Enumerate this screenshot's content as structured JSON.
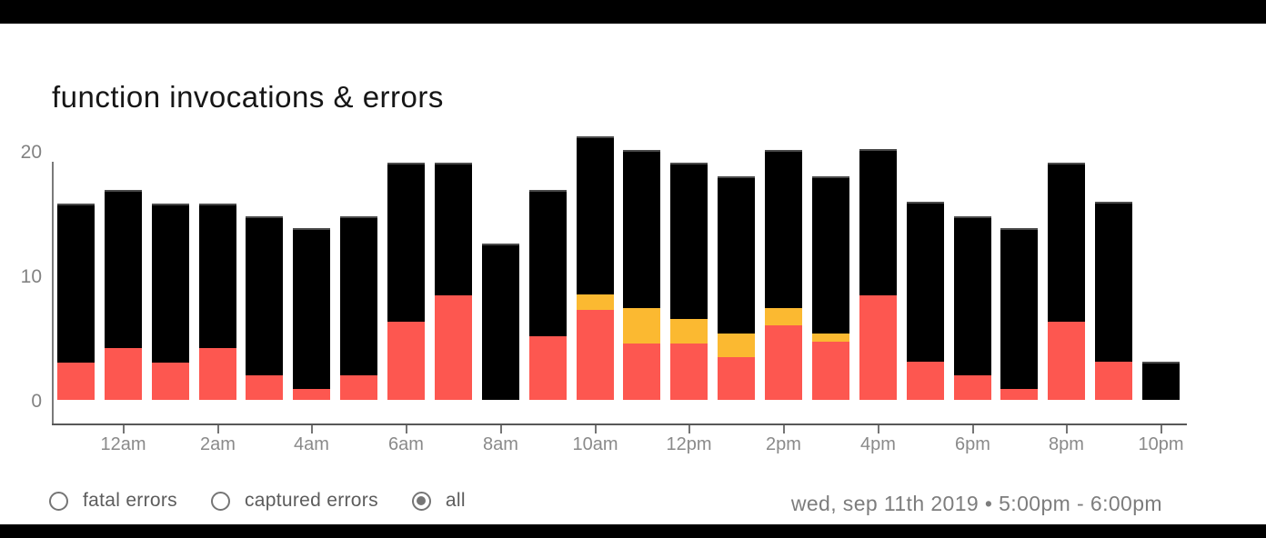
{
  "header": {
    "title": "function invocations & errors"
  },
  "colors": {
    "invocations": "#000000",
    "fatal_errors": "#fd5750",
    "captured_errors": "#fbb931",
    "axis": "#757575",
    "baseline": "#585858",
    "tick_label": "#8a8a8a",
    "title_text": "#161616",
    "footer_text": "#5c5c5c",
    "date_text": "#7d7d7d",
    "panel_bg": "#ffffff",
    "frame_bg": "#000000"
  },
  "chart_data": {
    "type": "bar",
    "stacked": true,
    "title": "function invocations & errors",
    "xlabel": "",
    "ylabel": "",
    "ylim": [
      0,
      21.5
    ],
    "y_ticks": [
      0,
      10,
      20
    ],
    "grid": false,
    "legend_position": "none",
    "x_tick_labels": [
      "12am",
      "2am",
      "4am",
      "6am",
      "8am",
      "10am",
      "12pm",
      "2pm",
      "4pm",
      "6pm",
      "8pm",
      "10pm"
    ],
    "series_names": [
      "fatal errors",
      "captured errors",
      "invocations"
    ],
    "bars": [
      {
        "hour": "11pm",
        "total": 15.8,
        "fatal": 3.0,
        "captured": 0,
        "labeled": false
      },
      {
        "hour": "12am",
        "total": 16.9,
        "fatal": 4.2,
        "captured": 0,
        "labeled": true
      },
      {
        "hour": "1am",
        "total": 15.8,
        "fatal": 3.0,
        "captured": 0,
        "labeled": false
      },
      {
        "hour": "2am",
        "total": 15.8,
        "fatal": 4.2,
        "captured": 0,
        "labeled": true
      },
      {
        "hour": "3am",
        "total": 14.8,
        "fatal": 2.0,
        "captured": 0,
        "labeled": false
      },
      {
        "hour": "4am",
        "total": 13.8,
        "fatal": 0.9,
        "captured": 0,
        "labeled": true
      },
      {
        "hour": "5am",
        "total": 14.8,
        "fatal": 2.0,
        "captured": 0,
        "labeled": false
      },
      {
        "hour": "6am",
        "total": 19.1,
        "fatal": 6.3,
        "captured": 0,
        "labeled": true
      },
      {
        "hour": "7am",
        "total": 19.1,
        "fatal": 8.4,
        "captured": 0,
        "labeled": false
      },
      {
        "hour": "8am",
        "total": 12.6,
        "fatal": 0,
        "captured": 0,
        "labeled": true
      },
      {
        "hour": "9am",
        "total": 16.9,
        "fatal": 5.1,
        "captured": 0,
        "labeled": false
      },
      {
        "hour": "10am",
        "total": 21.2,
        "fatal": 7.2,
        "captured": 1.3,
        "labeled": true
      },
      {
        "hour": "11am",
        "total": 20.1,
        "fatal": 4.5,
        "captured": 2.9,
        "labeled": false
      },
      {
        "hour": "12pm",
        "total": 19.1,
        "fatal": 4.5,
        "captured": 2.0,
        "labeled": true
      },
      {
        "hour": "1pm",
        "total": 18.0,
        "fatal": 3.4,
        "captured": 1.9,
        "labeled": false
      },
      {
        "hour": "2pm",
        "total": 20.1,
        "fatal": 6.0,
        "captured": 1.4,
        "labeled": true
      },
      {
        "hour": "3pm",
        "total": 18.0,
        "fatal": 4.7,
        "captured": 0.6,
        "labeled": false
      },
      {
        "hour": "4pm",
        "total": 20.2,
        "fatal": 8.4,
        "captured": 0,
        "labeled": true
      },
      {
        "hour": "5pm",
        "total": 15.9,
        "fatal": 3.1,
        "captured": 0,
        "labeled": false
      },
      {
        "hour": "6pm",
        "total": 14.8,
        "fatal": 2.0,
        "captured": 0,
        "labeled": true
      },
      {
        "hour": "7pm",
        "total": 13.8,
        "fatal": 0.9,
        "captured": 0,
        "labeled": false
      },
      {
        "hour": "8pm",
        "total": 19.1,
        "fatal": 6.3,
        "captured": 0,
        "labeled": true
      },
      {
        "hour": "9pm",
        "total": 15.9,
        "fatal": 3.1,
        "captured": 0,
        "labeled": false
      },
      {
        "hour": "10pm",
        "total": 3.1,
        "fatal": 0,
        "captured": 0,
        "labeled": true
      }
    ]
  },
  "controls": {
    "radios": [
      {
        "label": "fatal errors",
        "selected": false
      },
      {
        "label": "captured errors",
        "selected": false
      },
      {
        "label": "all",
        "selected": true
      }
    ]
  },
  "footer": {
    "date_range": "wed, sep 11th 2019 • 5:00pm - 6:00pm"
  }
}
